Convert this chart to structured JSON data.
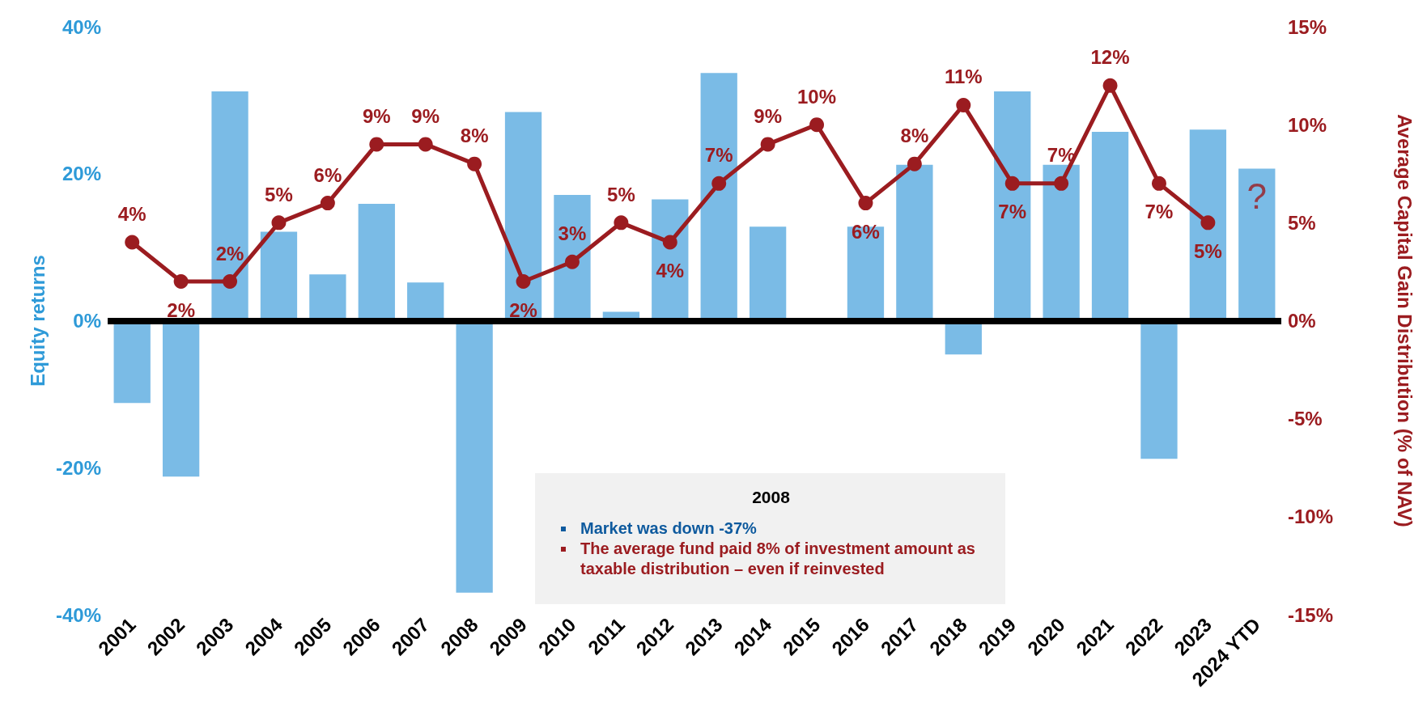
{
  "chart_data": {
    "type": "bar",
    "ylabel": "Equity returns",
    "y2label": "Average Capital Gain Distribution (% of NAV)",
    "categories": [
      "2001",
      "2002",
      "2003",
      "2004",
      "2005",
      "2006",
      "2007",
      "2008",
      "2009",
      "2010",
      "2011",
      "2012",
      "2013",
      "2014",
      "2015",
      "2016",
      "2017",
      "2018",
      "2019",
      "2020",
      "2021",
      "2022",
      "2023",
      "2024 YTD"
    ],
    "series": [
      {
        "color": "#7abbe6",
        "values": [
          -11.2,
          -21.2,
          31.2,
          12.1,
          6.3,
          15.9,
          5.2,
          -37,
          28.4,
          17.1,
          1.2,
          16.5,
          33.7,
          12.8,
          0,
          12.8,
          21.2,
          -4.6,
          31.2,
          21.2,
          25.7,
          -18.8,
          26.0,
          20.7
        ]
      },
      {
        "type": "line",
        "axis": "y2",
        "color": "#9b1c20",
        "marker": "circle",
        "values": [
          4,
          2,
          2,
          5,
          6,
          9,
          9,
          8,
          2,
          3,
          5,
          4,
          7,
          9,
          10,
          6,
          8,
          11,
          7,
          7,
          12,
          7,
          5,
          null
        ],
        "value_labels": [
          "4%",
          "2%",
          "2%",
          "5%",
          "6%",
          "9%",
          "9%",
          "8%",
          "2%",
          "3%",
          "5%",
          "4%",
          "7%",
          "9%",
          "10%",
          "6%",
          "8%",
          "11%",
          "7%",
          "7%",
          "12%",
          "7%",
          "5%",
          null
        ]
      }
    ],
    "ylim": [
      -40,
      40
    ],
    "yticks": [
      {
        "value": -40,
        "label": "-40%"
      },
      {
        "value": -20,
        "label": "-20%"
      },
      {
        "value": 0,
        "label": "0%"
      },
      {
        "value": 20,
        "label": "20%"
      },
      {
        "value": 40,
        "label": "40%"
      }
    ],
    "y2lim": [
      -15,
      15
    ],
    "y2ticks": [
      {
        "value": -15,
        "label": "-15%"
      },
      {
        "value": -10,
        "label": "-10%"
      },
      {
        "value": -5,
        "label": "-5%"
      },
      {
        "value": 0,
        "label": "0%"
      },
      {
        "value": 5,
        "label": "5%"
      },
      {
        "value": 10,
        "label": "10%"
      },
      {
        "value": 15,
        "label": "15%"
      }
    ],
    "ref_lines": [
      {
        "axis": "y",
        "value": 0,
        "color": "#000000"
      }
    ],
    "annotations": [
      {
        "text": "?",
        "x": "2024 YTD",
        "y": 17
      },
      "2008",
      "Market was down -37%",
      "The average fund paid 8% of investment amount as taxable distribution – even if reinvested"
    ]
  }
}
